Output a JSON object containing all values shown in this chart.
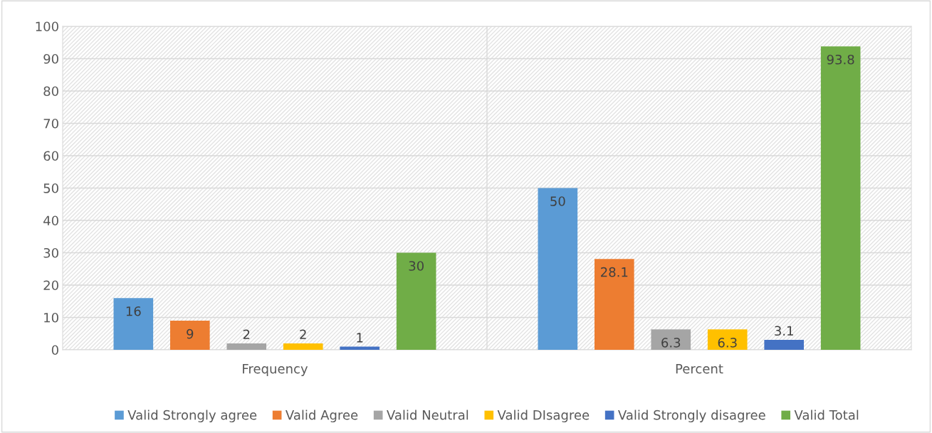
{
  "chart_data": {
    "type": "bar",
    "categories": [
      "Frequency",
      "Percent"
    ],
    "series": [
      {
        "name": "Valid Strongly agree",
        "color": "#5b9bd5",
        "values": [
          16,
          50
        ]
      },
      {
        "name": "Valid Agree",
        "color": "#ed7d31",
        "values": [
          9,
          28.1
        ]
      },
      {
        "name": "Valid Neutral",
        "color": "#a5a5a5",
        "values": [
          2,
          6.3
        ]
      },
      {
        "name": "Valid DIsagree",
        "color": "#ffc000",
        "values": [
          2,
          6.3
        ]
      },
      {
        "name": "Valid Strongly disagree",
        "color": "#4472c4",
        "values": [
          1,
          3.1
        ]
      },
      {
        "name": "Valid Total",
        "color": "#70ad47",
        "values": [
          30,
          93.8
        ]
      }
    ],
    "ylim": [
      0,
      100
    ],
    "yticks": [
      0,
      10,
      20,
      30,
      40,
      50,
      60,
      70,
      80,
      90,
      100
    ],
    "grid": "y",
    "legend": "bottom",
    "data_labels": true
  }
}
